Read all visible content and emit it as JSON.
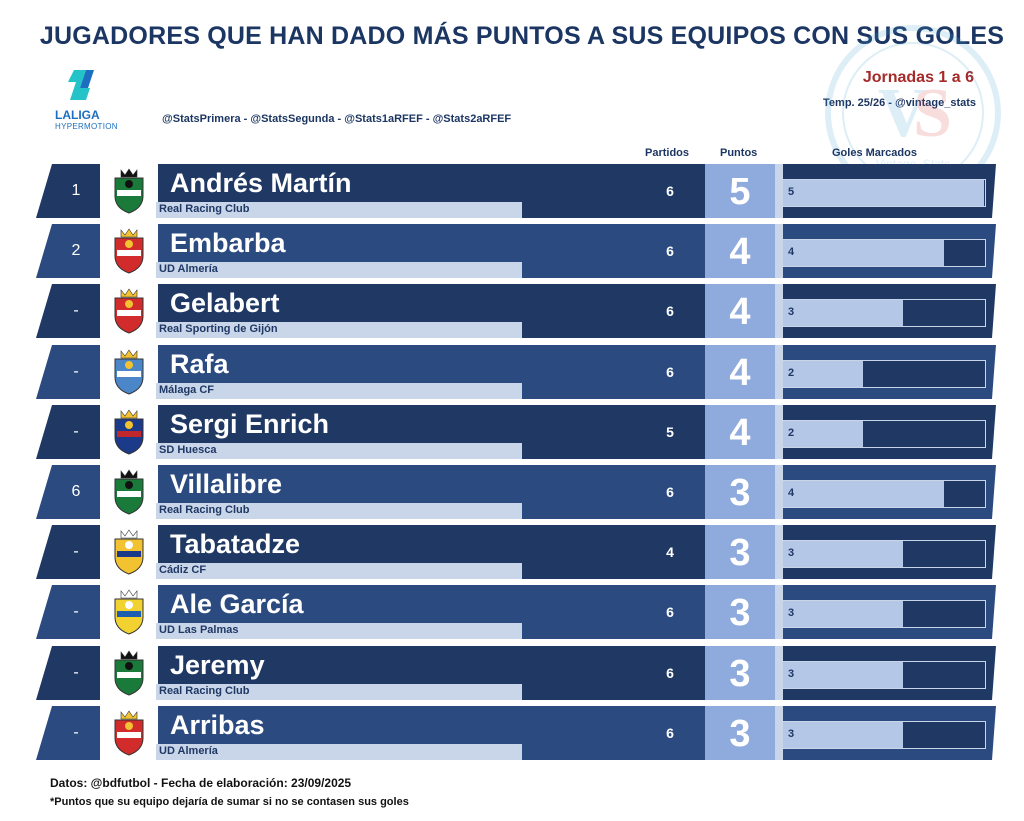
{
  "header": {
    "title": "JUGADORES QUE HAN DADO MÁS PUNTOS A SUS EQUIPOS CON SUS GOLES",
    "jornadas": "Jornadas 1 a 6",
    "temporada": "Temp. 25/26 - @vintage_stats",
    "handles": "@StatsPrimera - @StatsSegunda - @Stats1aRFEF - @Stats2aRFEF",
    "logo_text": "LALIGA",
    "logo_sub": "HYPERMOTION",
    "watermark_text": "Vintage_Stats"
  },
  "columns": {
    "matches": "Partidos",
    "points": "Puntos",
    "goals": "Goles Marcados"
  },
  "footer": {
    "source": "Datos: @bdfutbol - Fecha de elaboración: 23/09/2025",
    "note": "*Puntos que su equipo dejaría de sumar si no se contasen sus goles"
  },
  "chart_data": {
    "type": "table",
    "title": "JUGADORES QUE HAN DADO MÁS PUNTOS A SUS EQUIPOS CON SUS GOLES",
    "goals_max": 5,
    "rows": [
      {
        "rank": "1",
        "player": "Andrés Martín",
        "club": "Real Racing Club",
        "matches": 6,
        "points": 5,
        "goals": 5,
        "crest": "racing-santander-crest-icon"
      },
      {
        "rank": "2",
        "player": "Embarba",
        "club": "UD Almería",
        "matches": 6,
        "points": 4,
        "goals": 4,
        "crest": "almeria-crest-icon"
      },
      {
        "rank": "-",
        "player": "Gelabert",
        "club": "Real Sporting de Gijón",
        "matches": 6,
        "points": 4,
        "goals": 3,
        "crest": "sporting-gijon-crest-icon"
      },
      {
        "rank": "-",
        "player": "Rafa",
        "club": "Málaga CF",
        "matches": 6,
        "points": 4,
        "goals": 2,
        "crest": "malaga-crest-icon"
      },
      {
        "rank": "-",
        "player": "Sergi Enrich",
        "club": "SD Huesca",
        "matches": 5,
        "points": 4,
        "goals": 2,
        "crest": "huesca-crest-icon"
      },
      {
        "rank": "6",
        "player": "Villalibre",
        "club": "Real Racing Club",
        "matches": 6,
        "points": 3,
        "goals": 4,
        "crest": "racing-santander-crest-icon"
      },
      {
        "rank": "-",
        "player": "Tabatadze",
        "club": "Cádiz CF",
        "matches": 4,
        "points": 3,
        "goals": 3,
        "crest": "cadiz-crest-icon"
      },
      {
        "rank": "-",
        "player": "Ale García",
        "club": "UD Las Palmas",
        "matches": 6,
        "points": 3,
        "goals": 3,
        "crest": "las-palmas-crest-icon"
      },
      {
        "rank": "-",
        "player": "Jeremy",
        "club": "Real Racing Club",
        "matches": 6,
        "points": 3,
        "goals": 3,
        "crest": "racing-santander-crest-icon"
      },
      {
        "rank": "-",
        "player": "Arribas",
        "club": "UD Almería",
        "matches": 6,
        "points": 3,
        "goals": 3,
        "crest": "almeria-crest-icon"
      }
    ]
  }
}
